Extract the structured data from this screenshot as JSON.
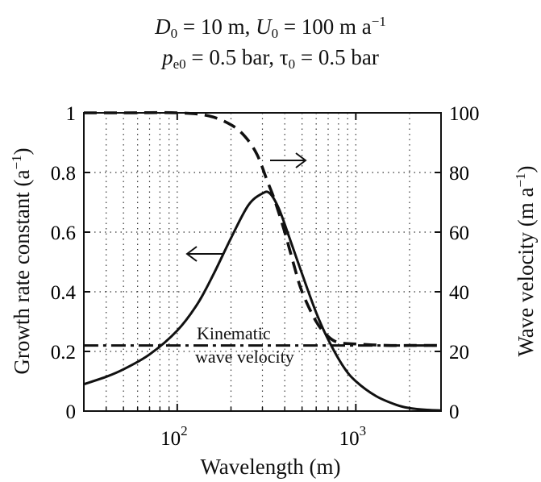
{
  "header": {
    "line1": {
      "d_sym": "D",
      "d_sub": "0",
      "d_val": " = 10 m,  ",
      "u_sym": "U",
      "u_sub": "0",
      "u_val": " = 100 m a",
      "u_sup": "−1"
    },
    "line2": {
      "p_sym": "p",
      "p_sub": "e0",
      "p_val": " = 0.5 bar,  ",
      "t_sym": "τ",
      "t_sub": "0",
      "t_val": " = 0.5 bar"
    }
  },
  "axes": {
    "xlabel": "Wavelength (m)",
    "ylabel_left_main": "Growth rate constant (a",
    "ylabel_left_sup": "−1",
    "ylabel_left_end": ")",
    "ylabel_right_main": "Wave velocity (m a",
    "ylabel_right_sup": "−1",
    "ylabel_right_end": ")",
    "x_ticks": [
      {
        "value": 100,
        "base": "10",
        "exp": "2"
      },
      {
        "value": 1000,
        "base": "10",
        "exp": "3"
      }
    ],
    "left_ticks": [
      "0",
      "0.2",
      "0.4",
      "0.6",
      "0.8",
      "1"
    ],
    "right_ticks": [
      "0",
      "20",
      "40",
      "60",
      "80",
      "100"
    ]
  },
  "annotations": {
    "kinematic_line1": "Kinematic",
    "kinematic_line2": "wave velocity"
  },
  "chart_data": {
    "type": "line",
    "xscale": "log",
    "xlim": [
      30,
      3000
    ],
    "ylim_left": [
      0,
      1
    ],
    "ylim_right": [
      0,
      100
    ],
    "grid": true,
    "xlabel": "Wavelength (m)",
    "ylabel_left": "Growth rate constant (a−1)",
    "ylabel_right": "Wave velocity (m a−1)",
    "series": [
      {
        "axis": "left",
        "style": "solid",
        "x": [
          30,
          40,
          50,
          70,
          100,
          130,
          160,
          200,
          250,
          300,
          330,
          370,
          420,
          500,
          600,
          700,
          850,
          1000,
          1300,
          1700,
          2000,
          2500,
          3000
        ],
        "y": [
          0.09,
          0.115,
          0.14,
          0.19,
          0.27,
          0.36,
          0.46,
          0.58,
          0.69,
          0.73,
          0.73,
          0.68,
          0.59,
          0.46,
          0.33,
          0.24,
          0.15,
          0.1,
          0.05,
          0.02,
          0.01,
          0.004,
          0.002
        ]
      },
      {
        "axis": "right",
        "style": "dashed",
        "x": [
          30,
          50,
          100,
          150,
          200,
          240,
          280,
          320,
          350,
          400,
          450,
          500,
          600,
          700,
          800,
          1000,
          1500,
          2000,
          3000
        ],
        "y": [
          100,
          100,
          100,
          99,
          96,
          92,
          86,
          77,
          71,
          60,
          49,
          40,
          30,
          25,
          23,
          22.5,
          22,
          22,
          22
        ]
      },
      {
        "axis": "right",
        "style": "dashdot",
        "x": [
          30,
          3000
        ],
        "y": [
          22,
          22
        ]
      }
    ]
  }
}
